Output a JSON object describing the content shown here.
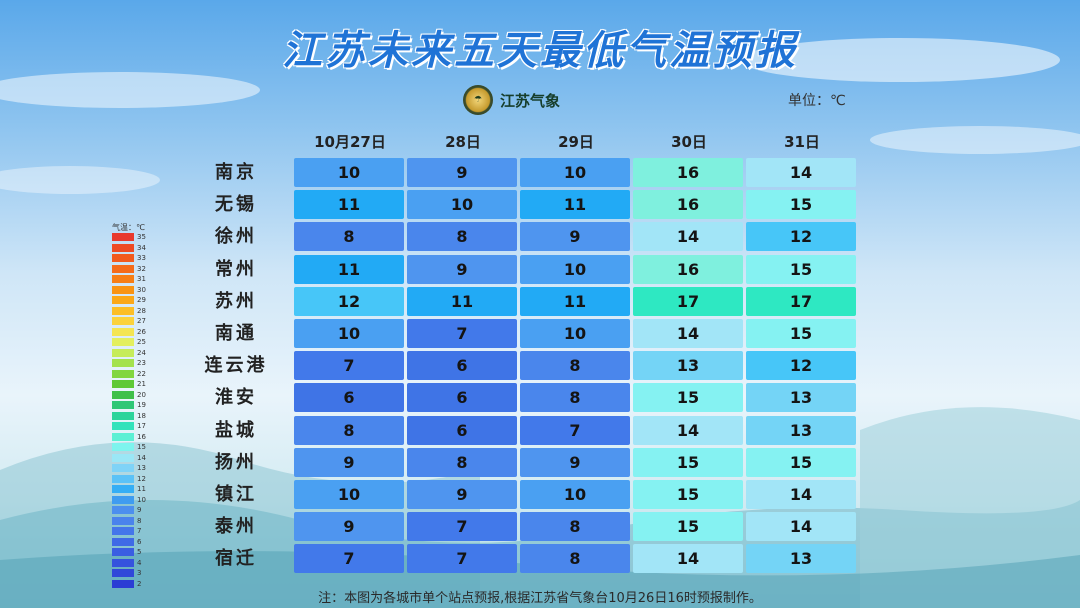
{
  "title": "江苏未来五天最低气温预报",
  "logo": {
    "text": "江苏气象",
    "icon": "meteorology-emblem-icon"
  },
  "unit": "单位：℃",
  "columns": [
    "10月27日",
    "28日",
    "29日",
    "30日",
    "31日"
  ],
  "rows": [
    {
      "city": "南京",
      "values": [
        10,
        9,
        10,
        16,
        14
      ]
    },
    {
      "city": "无锡",
      "values": [
        11,
        10,
        11,
        16,
        15
      ]
    },
    {
      "city": "徐州",
      "values": [
        8,
        8,
        9,
        14,
        12
      ]
    },
    {
      "city": "常州",
      "values": [
        11,
        9,
        10,
        16,
        15
      ]
    },
    {
      "city": "苏州",
      "values": [
        12,
        11,
        11,
        17,
        17
      ]
    },
    {
      "city": "南通",
      "values": [
        10,
        7,
        10,
        14,
        15
      ]
    },
    {
      "city": "连云港",
      "values": [
        7,
        6,
        8,
        13,
        12
      ]
    },
    {
      "city": "淮安",
      "values": [
        6,
        6,
        8,
        15,
        13
      ]
    },
    {
      "city": "盐城",
      "values": [
        8,
        6,
        7,
        14,
        13
      ]
    },
    {
      "city": "扬州",
      "values": [
        9,
        8,
        9,
        15,
        15
      ]
    },
    {
      "city": "镇江",
      "values": [
        10,
        9,
        10,
        15,
        14
      ]
    },
    {
      "city": "泰州",
      "values": [
        9,
        7,
        8,
        15,
        14
      ]
    },
    {
      "city": "宿迁",
      "values": [
        7,
        7,
        8,
        14,
        13
      ]
    }
  ],
  "legend": {
    "title": "气温：℃",
    "items": [
      {
        "label": "35",
        "color": "#e8392d"
      },
      {
        "label": "34",
        "color": "#ee4a24"
      },
      {
        "label": "33",
        "color": "#f25a1e"
      },
      {
        "label": "32",
        "color": "#f56b1a"
      },
      {
        "label": "31",
        "color": "#f77e16"
      },
      {
        "label": "30",
        "color": "#f99414"
      },
      {
        "label": "29",
        "color": "#fba818"
      },
      {
        "label": "28",
        "color": "#fcbe26"
      },
      {
        "label": "27",
        "color": "#fbd23b"
      },
      {
        "label": "26",
        "color": "#f4e552"
      },
      {
        "label": "25",
        "color": "#e3ef5f"
      },
      {
        "label": "24",
        "color": "#c6ec5a"
      },
      {
        "label": "23",
        "color": "#a4e24d"
      },
      {
        "label": "22",
        "color": "#82d640"
      },
      {
        "label": "21",
        "color": "#5fc936"
      },
      {
        "label": "20",
        "color": "#3fc04a"
      },
      {
        "label": "19",
        "color": "#2fc776"
      },
      {
        "label": "18",
        "color": "#2dd49b"
      },
      {
        "label": "17",
        "color": "#33e2bb"
      },
      {
        "label": "16",
        "color": "#5cf0d4"
      },
      {
        "label": "15",
        "color": "#7ef4ee"
      },
      {
        "label": "14",
        "color": "#9be7f6"
      },
      {
        "label": "13",
        "color": "#7fd3f7"
      },
      {
        "label": "12",
        "color": "#5bc2f7"
      },
      {
        "label": "11",
        "color": "#35aef5"
      },
      {
        "label": "10",
        "color": "#3f9cf0"
      },
      {
        "label": "9",
        "color": "#4c8fee"
      },
      {
        "label": "8",
        "color": "#4a83ec"
      },
      {
        "label": "7",
        "color": "#4476ea"
      },
      {
        "label": "6",
        "color": "#3f6ae6"
      },
      {
        "label": "5",
        "color": "#3a5ee2"
      },
      {
        "label": "4",
        "color": "#3553de"
      },
      {
        "label": "3",
        "color": "#3048d9"
      },
      {
        "label": "2",
        "color": "#2b3dd4"
      }
    ]
  },
  "cell_colors": {
    "6": "#3f74e6",
    "7": "#4279ea",
    "8": "#4a86ec",
    "9": "#4f95ef",
    "10": "#4aa0f2",
    "11": "#22aaf5",
    "12": "#47c6f8",
    "13": "#74d4f6",
    "14": "#a2e5f7",
    "15": "#85f2f2",
    "16": "#7ff0de",
    "17": "#2ee8c2"
  },
  "footnote": "注：本图为各城市单个站点预报,根据江苏省气象台10月26日16时预报制作。"
}
